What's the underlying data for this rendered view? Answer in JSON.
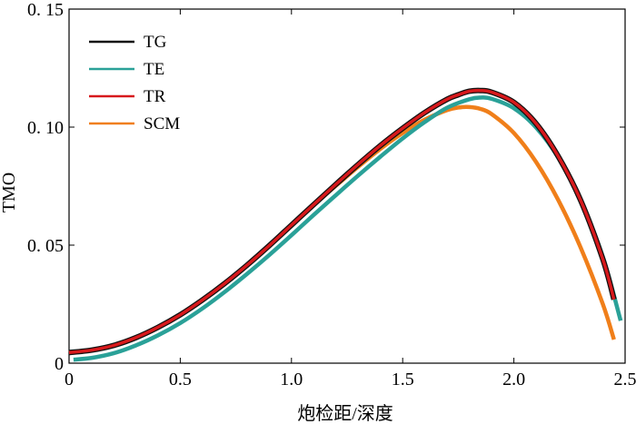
{
  "chart_data": {
    "type": "line",
    "title": "",
    "xlabel": "炮检距/深度",
    "ylabel": "TMO",
    "xlim": [
      0,
      2.5
    ],
    "ylim": [
      0,
      0.15
    ],
    "grid": false,
    "legend_position": "top-left",
    "x_ticks": [
      0,
      0.5,
      1.0,
      1.5,
      2.0,
      2.5
    ],
    "x_tick_labels": [
      "0",
      "0.5",
      "1.0",
      "1.5",
      "2.0",
      "2.5"
    ],
    "y_ticks": [
      0,
      0.05,
      0.1,
      0.15
    ],
    "y_tick_labels": [
      "0",
      "0. 05",
      "0. 10",
      "0. 15"
    ],
    "series": [
      {
        "name": "TG",
        "color": "#111111",
        "x": [
          0,
          0.1,
          0.2,
          0.3,
          0.4,
          0.5,
          0.6,
          0.7,
          0.8,
          0.9,
          1.0,
          1.1,
          1.2,
          1.3,
          1.4,
          1.5,
          1.6,
          1.7,
          1.75,
          1.8,
          1.85,
          1.9,
          2.0,
          2.1,
          2.2,
          2.3,
          2.4,
          2.45
        ],
        "values": [
          0.0045,
          0.0055,
          0.0075,
          0.0108,
          0.0152,
          0.0205,
          0.0268,
          0.0338,
          0.0415,
          0.0498,
          0.0585,
          0.0672,
          0.0758,
          0.0842,
          0.0922,
          0.0995,
          0.1062,
          0.1118,
          0.1137,
          0.1152,
          0.1155,
          0.1148,
          0.1105,
          0.1015,
          0.0875,
          0.069,
          0.044,
          0.027
        ]
      },
      {
        "name": "TE",
        "color": "#2aa198",
        "x": [
          0.02,
          0.1,
          0.2,
          0.3,
          0.4,
          0.5,
          0.6,
          0.7,
          0.8,
          0.9,
          1.0,
          1.1,
          1.2,
          1.3,
          1.4,
          1.5,
          1.6,
          1.7,
          1.8,
          1.85,
          1.9,
          2.0,
          2.1,
          2.2,
          2.3,
          2.4,
          2.48
        ],
        "values": [
          0.0015,
          0.0022,
          0.0042,
          0.0075,
          0.0118,
          0.017,
          0.0232,
          0.0302,
          0.0378,
          0.0458,
          0.0542,
          0.0628,
          0.0712,
          0.0795,
          0.0875,
          0.0952,
          0.1022,
          0.1082,
          0.1118,
          0.1125,
          0.112,
          0.108,
          0.0998,
          0.087,
          0.069,
          0.045,
          0.018
        ]
      },
      {
        "name": "TR",
        "color": "#d7191c",
        "x": [
          0,
          0.1,
          0.2,
          0.3,
          0.4,
          0.5,
          0.6,
          0.7,
          0.8,
          0.9,
          1.0,
          1.1,
          1.2,
          1.3,
          1.4,
          1.5,
          1.6,
          1.7,
          1.75,
          1.8,
          1.85,
          1.9,
          2.0,
          2.1,
          2.2,
          2.3,
          2.4,
          2.45
        ],
        "values": [
          0.0045,
          0.0055,
          0.0075,
          0.0108,
          0.0152,
          0.0205,
          0.0268,
          0.0338,
          0.0415,
          0.0498,
          0.0585,
          0.0672,
          0.0758,
          0.0842,
          0.0922,
          0.0995,
          0.1062,
          0.1118,
          0.1137,
          0.1152,
          0.1155,
          0.1148,
          0.1105,
          0.1015,
          0.0875,
          0.069,
          0.044,
          0.027
        ]
      },
      {
        "name": "SCM",
        "color": "#f07f1a",
        "x": [
          0,
          0.1,
          0.2,
          0.3,
          0.4,
          0.5,
          0.6,
          0.7,
          0.8,
          0.9,
          1.0,
          1.1,
          1.2,
          1.3,
          1.4,
          1.5,
          1.6,
          1.7,
          1.75,
          1.8,
          1.85,
          1.9,
          2.0,
          2.1,
          2.2,
          2.3,
          2.4,
          2.45
        ],
        "values": [
          0.0045,
          0.0055,
          0.0075,
          0.0108,
          0.0152,
          0.0205,
          0.0268,
          0.0338,
          0.0415,
          0.0498,
          0.0585,
          0.067,
          0.0752,
          0.0832,
          0.0908,
          0.0975,
          0.1032,
          0.1072,
          0.1083,
          0.1085,
          0.1077,
          0.1055,
          0.0975,
          0.0852,
          0.069,
          0.049,
          0.025,
          0.01
        ]
      }
    ]
  }
}
